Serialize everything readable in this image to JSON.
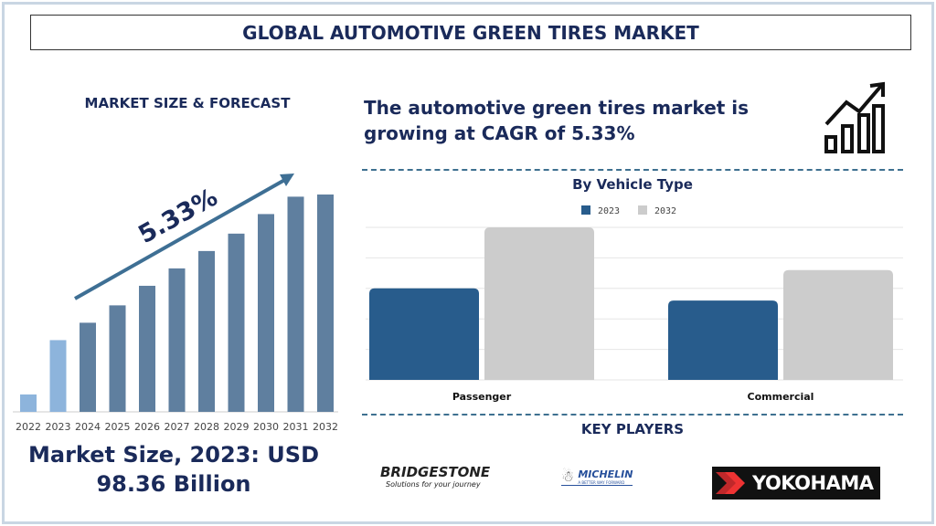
{
  "title": "GLOBAL AUTOMOTIVE GREEN TIRES MARKET",
  "market_section_title": "MARKET SIZE & FORECAST",
  "market_size_text": "Market Size, 2023: USD 98.36 Billion",
  "headline": "The automotive green tires market is growing at CAGR of 5.33%",
  "vehicle_section_title": "By Vehicle Type",
  "key_players_title": "KEY PLAYERS",
  "key_players": [
    {
      "name": "BRIDGESTONE",
      "tagline": "Solutions for your journey"
    },
    {
      "name": "MICHELIN",
      "tagline": "A BETTER WAY FORWARD"
    },
    {
      "name": "YOKOHAMA"
    }
  ],
  "icons": [
    "growth-chart-arrow-icon"
  ],
  "chart_data": [
    {
      "type": "bar",
      "title": "",
      "categories": [
        "2022",
        "2023",
        "2024",
        "2025",
        "2026",
        "2027",
        "2028",
        "2029",
        "2030",
        "2031",
        "2032"
      ],
      "values": [
        8,
        33,
        41,
        49,
        58,
        66,
        74,
        82,
        91,
        99,
        100
      ],
      "annotation": "5.33%",
      "highlight_colors": {
        "historic": "#8db4dc",
        "forecast": "#5f7f9f"
      },
      "grid": false
    },
    {
      "type": "bar",
      "title": "By Vehicle Type",
      "categories": [
        "Passenger",
        "Commercial"
      ],
      "series": [
        {
          "name": "2023",
          "values": [
            3.0,
            2.6
          ],
          "color": "#285c8c"
        },
        {
          "name": "2032",
          "values": [
            5.0,
            3.6
          ],
          "color": "#cccccc"
        }
      ],
      "ylim": [
        0,
        5
      ],
      "grid": true,
      "legend": "top"
    }
  ]
}
